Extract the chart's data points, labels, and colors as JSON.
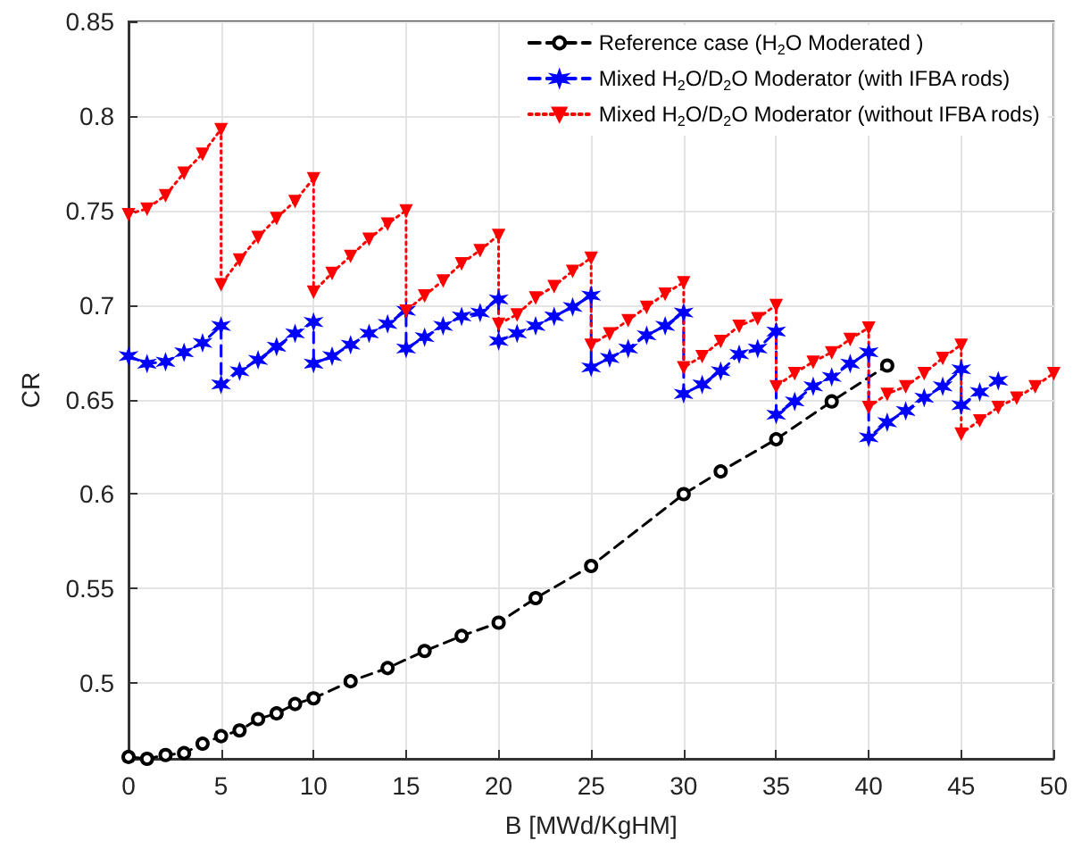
{
  "chart_data": {
    "type": "line",
    "xlabel": "B [MWd/KgHM]",
    "ylabel": "CR",
    "xlim": [
      0,
      50
    ],
    "xticks": [
      0,
      5,
      10,
      15,
      20,
      25,
      30,
      35,
      40,
      45,
      50
    ],
    "ylim": [
      0.46,
      0.85
    ],
    "yticks": [
      0.5,
      0.55,
      0.6,
      0.65,
      0.7,
      0.75,
      0.8,
      0.85
    ],
    "grid": true,
    "legend": "top right",
    "series": [
      {
        "name": "Reference case (H$_{2}$O Moderated )",
        "color": "#000000",
        "marker": "circle",
        "line_style": "dashed",
        "x": [
          0,
          1,
          2,
          3,
          4,
          5,
          6,
          7,
          8,
          9,
          10,
          12,
          14,
          16,
          18,
          20,
          22,
          25,
          30,
          32,
          35,
          38,
          41
        ],
        "values": [
          0.461,
          0.46,
          0.462,
          0.463,
          0.468,
          0.472,
          0.475,
          0.481,
          0.484,
          0.489,
          0.492,
          0.501,
          0.508,
          0.517,
          0.525,
          0.532,
          0.545,
          0.562,
          0.6,
          0.612,
          0.629,
          0.649,
          0.668
        ]
      },
      {
        "name": "Mixed H$_{2}$O/D$_{2}$O Moderator (with IFBA rods)",
        "color": "#0000ff",
        "marker": "cross",
        "line_style": "dashed",
        "x": [
          0,
          1,
          2,
          3,
          4,
          5,
          5,
          6,
          7,
          8,
          9,
          10,
          10,
          11,
          12,
          13,
          14,
          15,
          15,
          16,
          17,
          18,
          19,
          20,
          20,
          21,
          22,
          23,
          24,
          25,
          25,
          26,
          27,
          28,
          29,
          30,
          30,
          31,
          32,
          33,
          34,
          35,
          35,
          36,
          37,
          38,
          39,
          40,
          40,
          41,
          42,
          43,
          44,
          45,
          45,
          46,
          47
        ],
        "values": [
          0.673,
          0.669,
          0.67,
          0.675,
          0.68,
          0.689,
          0.658,
          0.665,
          0.671,
          0.678,
          0.685,
          0.691,
          0.669,
          0.673,
          0.679,
          0.685,
          0.69,
          0.697,
          0.677,
          0.683,
          0.689,
          0.694,
          0.696,
          0.703,
          0.681,
          0.685,
          0.689,
          0.694,
          0.699,
          0.705,
          0.667,
          0.672,
          0.677,
          0.684,
          0.689,
          0.696,
          0.653,
          0.658,
          0.665,
          0.674,
          0.677,
          0.686,
          0.642,
          0.649,
          0.657,
          0.662,
          0.669,
          0.675,
          0.63,
          0.638,
          0.644,
          0.651,
          0.657,
          0.666,
          0.647,
          0.654,
          0.66
        ]
      },
      {
        "name": "Mixed H$_{2}$O/D$_{2}$O Moderator (without IFBA rods)",
        "color": "#ff0000",
        "marker": "triangle",
        "line_style": "dotted",
        "x": [
          0,
          1,
          2,
          3,
          4,
          5,
          5,
          6,
          7,
          8,
          9,
          10,
          10,
          11,
          12,
          13,
          14,
          15,
          15,
          16,
          17,
          18,
          19,
          20,
          20,
          21,
          22,
          23,
          24,
          25,
          25,
          26,
          27,
          28,
          29,
          30,
          30,
          31,
          32,
          33,
          34,
          35,
          35,
          36,
          37,
          38,
          39,
          40,
          40,
          41,
          42,
          43,
          44,
          45,
          45,
          46,
          47,
          48,
          49,
          50
        ],
        "values": [
          0.748,
          0.751,
          0.758,
          0.77,
          0.78,
          0.793,
          0.711,
          0.724,
          0.736,
          0.746,
          0.755,
          0.767,
          0.707,
          0.717,
          0.726,
          0.735,
          0.743,
          0.75,
          0.697,
          0.705,
          0.713,
          0.722,
          0.729,
          0.737,
          0.69,
          0.695,
          0.704,
          0.71,
          0.718,
          0.725,
          0.679,
          0.685,
          0.692,
          0.699,
          0.706,
          0.712,
          0.667,
          0.673,
          0.681,
          0.689,
          0.693,
          0.7,
          0.657,
          0.664,
          0.67,
          0.675,
          0.682,
          0.688,
          0.646,
          0.653,
          0.657,
          0.664,
          0.672,
          0.679,
          0.632,
          0.639,
          0.646,
          0.651,
          0.657,
          0.664
        ]
      }
    ]
  }
}
